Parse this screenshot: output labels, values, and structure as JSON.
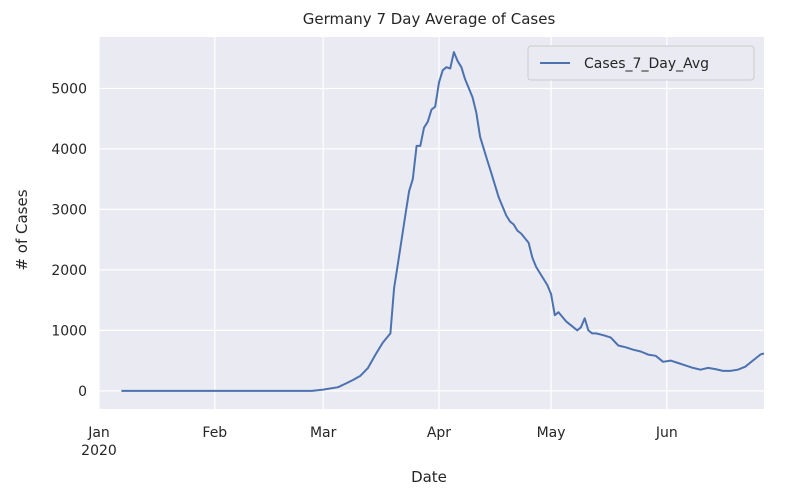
{
  "chart_data": {
    "type": "line",
    "title": "Germany 7 Day Average of Cases",
    "xlabel": "Date",
    "ylabel": "# of Cases",
    "grid": true,
    "legend_position": "top-right",
    "xlim": [
      "2020-01-01",
      "2020-06-27"
    ],
    "ylim": [
      -300,
      5850
    ],
    "y_ticks": [
      0,
      1000,
      2000,
      3000,
      4000,
      5000
    ],
    "x_ticks": [
      {
        "date": "2020-01-01",
        "label": "Jan",
        "sublabel": "2020"
      },
      {
        "date": "2020-02-01",
        "label": "Feb",
        "sublabel": ""
      },
      {
        "date": "2020-03-01",
        "label": "Mar",
        "sublabel": ""
      },
      {
        "date": "2020-04-01",
        "label": "Apr",
        "sublabel": ""
      },
      {
        "date": "2020-05-01",
        "label": "May",
        "sublabel": ""
      },
      {
        "date": "2020-06-01",
        "label": "Jun",
        "sublabel": ""
      }
    ],
    "colors": {
      "line": "#4c72b0",
      "plot_bg": "#eaeaf2",
      "grid": "#ffffff"
    },
    "series": [
      {
        "name": "Cases_7_Day_Avg",
        "x": [
          "2020-01-07",
          "2020-01-15",
          "2020-02-01",
          "2020-02-15",
          "2020-02-27",
          "2020-03-01",
          "2020-03-05",
          "2020-03-07",
          "2020-03-09",
          "2020-03-11",
          "2020-03-13",
          "2020-03-15",
          "2020-03-17",
          "2020-03-19",
          "2020-03-20",
          "2020-03-21",
          "2020-03-23",
          "2020-03-24",
          "2020-03-25",
          "2020-03-26",
          "2020-03-27",
          "2020-03-28",
          "2020-03-29",
          "2020-03-30",
          "2020-03-31",
          "2020-04-01",
          "2020-04-02",
          "2020-04-03",
          "2020-04-04",
          "2020-04-05",
          "2020-04-06",
          "2020-04-07",
          "2020-04-08",
          "2020-04-09",
          "2020-04-10",
          "2020-04-11",
          "2020-04-12",
          "2020-04-13",
          "2020-04-14",
          "2020-04-15",
          "2020-04-17",
          "2020-04-19",
          "2020-04-20",
          "2020-04-21",
          "2020-04-22",
          "2020-04-23",
          "2020-04-25",
          "2020-04-26",
          "2020-04-27",
          "2020-04-28",
          "2020-04-30",
          "2020-05-01",
          "2020-05-02",
          "2020-05-03",
          "2020-05-05",
          "2020-05-07",
          "2020-05-08",
          "2020-05-09",
          "2020-05-10",
          "2020-05-11",
          "2020-05-12",
          "2020-05-13",
          "2020-05-15",
          "2020-05-17",
          "2020-05-19",
          "2020-05-21",
          "2020-05-23",
          "2020-05-25",
          "2020-05-27",
          "2020-05-29",
          "2020-05-31",
          "2020-06-02",
          "2020-06-04",
          "2020-06-06",
          "2020-06-08",
          "2020-06-10",
          "2020-06-12",
          "2020-06-14",
          "2020-06-16",
          "2020-06-18",
          "2020-06-20",
          "2020-06-22",
          "2020-06-24",
          "2020-06-26",
          "2020-06-27"
        ],
        "values": [
          0,
          0,
          0,
          0,
          0,
          20,
          60,
          120,
          180,
          250,
          380,
          600,
          800,
          950,
          1700,
          2100,
          2900,
          3300,
          3500,
          4050,
          4050,
          4350,
          4450,
          4650,
          4700,
          5100,
          5300,
          5350,
          5330,
          5600,
          5450,
          5350,
          5150,
          5000,
          4850,
          4600,
          4200,
          4000,
          3800,
          3600,
          3200,
          2900,
          2800,
          2750,
          2650,
          2600,
          2450,
          2200,
          2050,
          1950,
          1750,
          1600,
          1250,
          1300,
          1150,
          1050,
          1000,
          1050,
          1200,
          1000,
          950,
          950,
          920,
          880,
          750,
          720,
          680,
          650,
          600,
          580,
          480,
          500,
          460,
          420,
          380,
          350,
          380,
          360,
          330,
          330,
          350,
          400,
          500,
          600,
          620
        ]
      }
    ]
  }
}
